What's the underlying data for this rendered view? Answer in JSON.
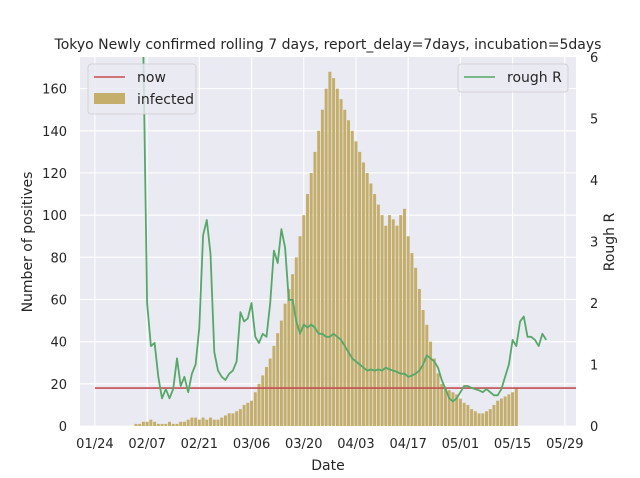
{
  "chart_data": {
    "type": "bar+line",
    "title": "Tokyo Newly confirmed rolling 7 days, report_delay=7days, incubation=5days",
    "xlabel": "Date",
    "ylabel_left": "Number of positives",
    "ylabel_right": "Rough R",
    "ylim_left": [
      0,
      175
    ],
    "ylim_right": [
      0,
      6
    ],
    "x_range_days": [
      -4,
      129
    ],
    "x_tick_labels": [
      "01/24",
      "02/07",
      "02/21",
      "03/06",
      "03/20",
      "04/03",
      "04/17",
      "05/01",
      "05/15",
      "05/29"
    ],
    "y_ticks_left": [
      0,
      20,
      40,
      60,
      80,
      100,
      120,
      140,
      160
    ],
    "y_ticks_right": [
      0,
      1,
      2,
      3,
      4,
      5,
      6
    ],
    "grid": true,
    "legend_left": {
      "placement": "upper-left",
      "entries": [
        "now",
        "infected"
      ]
    },
    "legend_right": {
      "placement": "upper-right",
      "entries": [
        "rough R"
      ]
    },
    "colors": {
      "infected": "#c4ae6c",
      "now": "#c44e52",
      "rough_r": "#55a868",
      "background": "#eaeaf2",
      "grid": "#ffffff"
    },
    "now_line": {
      "value": 18,
      "x_start_day": 0,
      "x_end_day": 129
    },
    "infected": {
      "start_day": 11,
      "values": [
        1,
        1,
        2,
        2,
        3,
        2,
        1,
        1,
        1,
        2,
        1,
        1,
        2,
        2,
        3,
        4,
        4,
        3,
        4,
        3,
        4,
        3,
        3,
        4,
        5,
        6,
        6,
        7,
        8,
        10,
        11,
        12,
        16,
        20,
        24,
        28,
        32,
        38,
        44,
        50,
        58,
        65,
        72,
        80,
        90,
        100,
        110,
        120,
        130,
        140,
        150,
        160,
        168,
        165,
        160,
        155,
        150,
        145,
        140,
        135,
        130,
        125,
        120,
        115,
        110,
        105,
        100,
        95,
        100,
        98,
        95,
        100,
        103,
        90,
        82,
        75,
        65,
        55,
        48,
        40,
        32,
        25,
        20,
        18,
        17,
        16,
        15,
        13,
        11,
        10,
        8,
        7,
        6,
        6,
        7,
        8,
        10,
        12,
        13,
        14,
        15,
        16,
        18
      ]
    },
    "rough_r": {
      "start_day": 13,
      "values": [
        6.0,
        2.0,
        1.3,
        1.35,
        0.8,
        0.45,
        0.6,
        0.45,
        0.6,
        1.1,
        0.65,
        0.8,
        0.55,
        0.85,
        1.0,
        1.6,
        3.1,
        3.35,
        2.8,
        1.2,
        0.9,
        0.8,
        0.75,
        0.85,
        0.9,
        1.05,
        1.85,
        1.7,
        1.75,
        2.0,
        1.45,
        1.35,
        1.5,
        1.45,
        2.0,
        2.85,
        2.65,
        3.2,
        2.9,
        2.05,
        2.05,
        1.7,
        1.5,
        1.65,
        1.6,
        1.65,
        1.6,
        1.5,
        1.5,
        1.45,
        1.45,
        1.5,
        1.45,
        1.4,
        1.3,
        1.2,
        1.1,
        1.05,
        1.0,
        0.95,
        0.9,
        0.92,
        0.9,
        0.92,
        0.9,
        0.95,
        0.92,
        0.9,
        0.88,
        0.85,
        0.85,
        0.8,
        0.82,
        0.85,
        0.9,
        1.0,
        1.15,
        1.1,
        1.05,
        0.95,
        0.75,
        0.6,
        0.45,
        0.4,
        0.45,
        0.55,
        0.65,
        0.65,
        0.62,
        0.6,
        0.58,
        0.55,
        0.6,
        0.55,
        0.5,
        0.5,
        0.6,
        0.8,
        1.0,
        1.4,
        1.3,
        1.7,
        1.78,
        1.45,
        1.45,
        1.4,
        1.3,
        1.5,
        1.4
      ]
    }
  }
}
